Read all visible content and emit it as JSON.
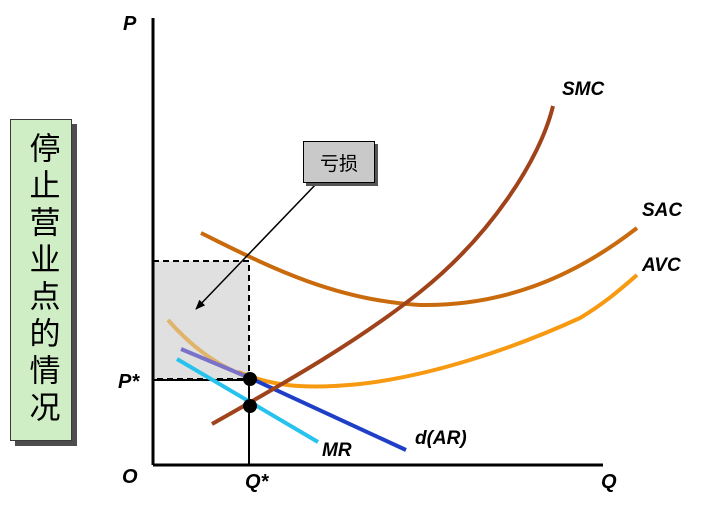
{
  "title_vertical": "停止营业点的情况",
  "loss_label": "亏损",
  "axes": {
    "y_label": "P",
    "x_label": "Q",
    "origin": "O"
  },
  "markers": {
    "price": "P*",
    "quantity": "Q*"
  },
  "curves": {
    "smc": "SMC",
    "sac": "SAC",
    "avc": "AVC",
    "demand": "d(AR)",
    "mr": "MR"
  },
  "colors": {
    "smc": "#a0421a",
    "sac": "#c96a0c",
    "avc": "#f79a12",
    "demand": "#1f3fc7",
    "mr": "#27c3ee",
    "loss_fill": "#e0e0e0",
    "tan_curve": "#e0b46a",
    "purple_curve": "#7a72c8"
  }
}
